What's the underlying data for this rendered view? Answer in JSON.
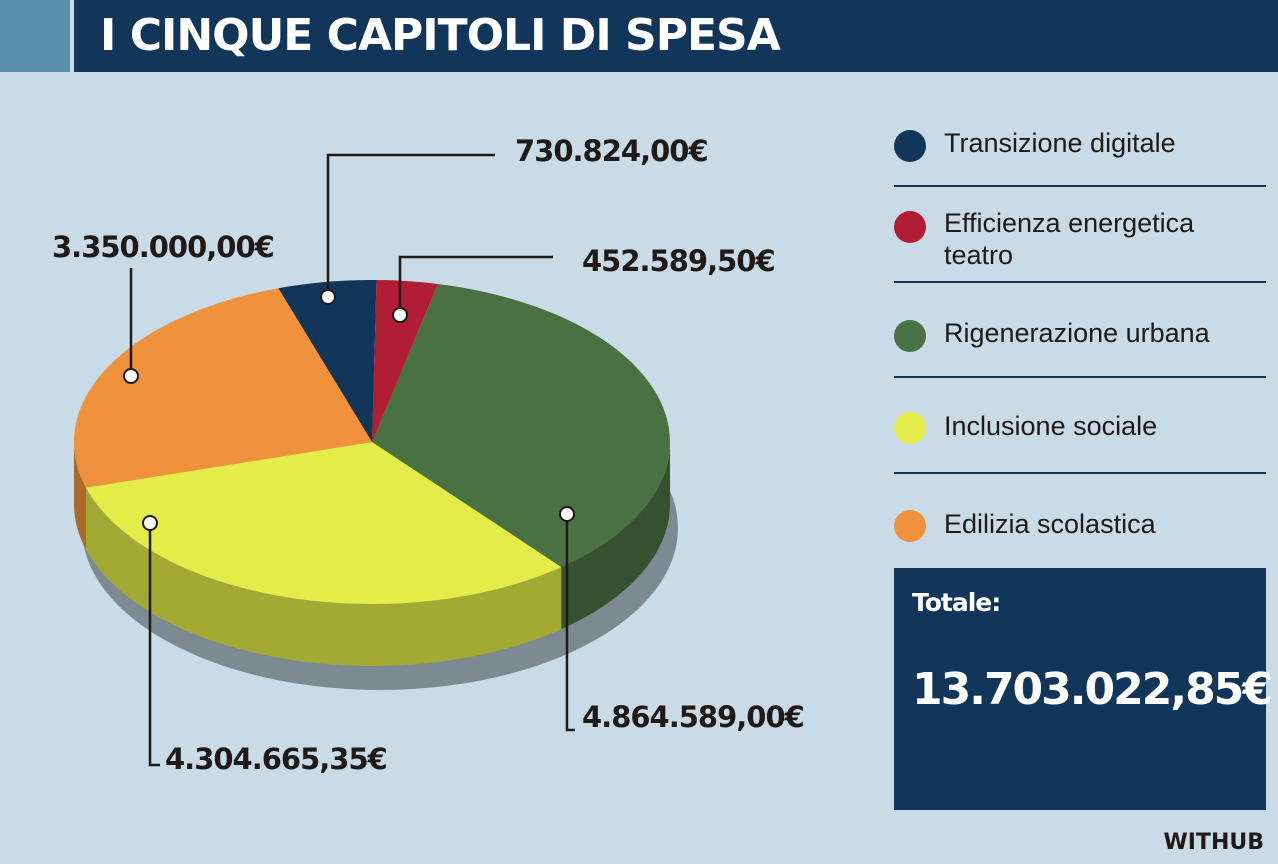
{
  "header": {
    "title": "I CINQUE CAPITOLI DI SPESA"
  },
  "chart_data": {
    "type": "pie",
    "title": "I CINQUE CAPITOLI DI SPESA",
    "slices": [
      {
        "name": "Transizione digitale",
        "value": 730824.0,
        "label": "730.824,00€",
        "color": "#12365a"
      },
      {
        "name": "Efficienza energetica teatro",
        "value": 452589.5,
        "label": "452.589,50€",
        "color": "#b01d34"
      },
      {
        "name": "Rigenerazione urbana",
        "value": 4864589.0,
        "label": "4.864.589,00€",
        "color": "#4a7142"
      },
      {
        "name": "Inclusione sociale",
        "value": 4304665.35,
        "label": "4.304.665,35€",
        "color": "#e3ec48"
      },
      {
        "name": "Edilizia scolastica",
        "value": 3350000.0,
        "label": "3.350.000,00€",
        "color": "#ef923b"
      }
    ],
    "total": 13703022.85
  },
  "legend": [
    {
      "label_line1": "Transizione digitale",
      "label_line2": "",
      "color": "#12365a"
    },
    {
      "label_line1": "Efficienza energetica",
      "label_line2": "teatro",
      "color": "#b01d34"
    },
    {
      "label_line1": "Rigenerazione urbana",
      "label_line2": "",
      "color": "#4a7142"
    },
    {
      "label_line1": "Inclusione sociale",
      "label_line2": "",
      "color": "#e3ec48"
    },
    {
      "label_line1": "Edilizia scolastica",
      "label_line2": "",
      "color": "#ef923b"
    }
  ],
  "total": {
    "label": "Totale:",
    "value": "13.703.022,85€"
  },
  "source": "WITHUB"
}
